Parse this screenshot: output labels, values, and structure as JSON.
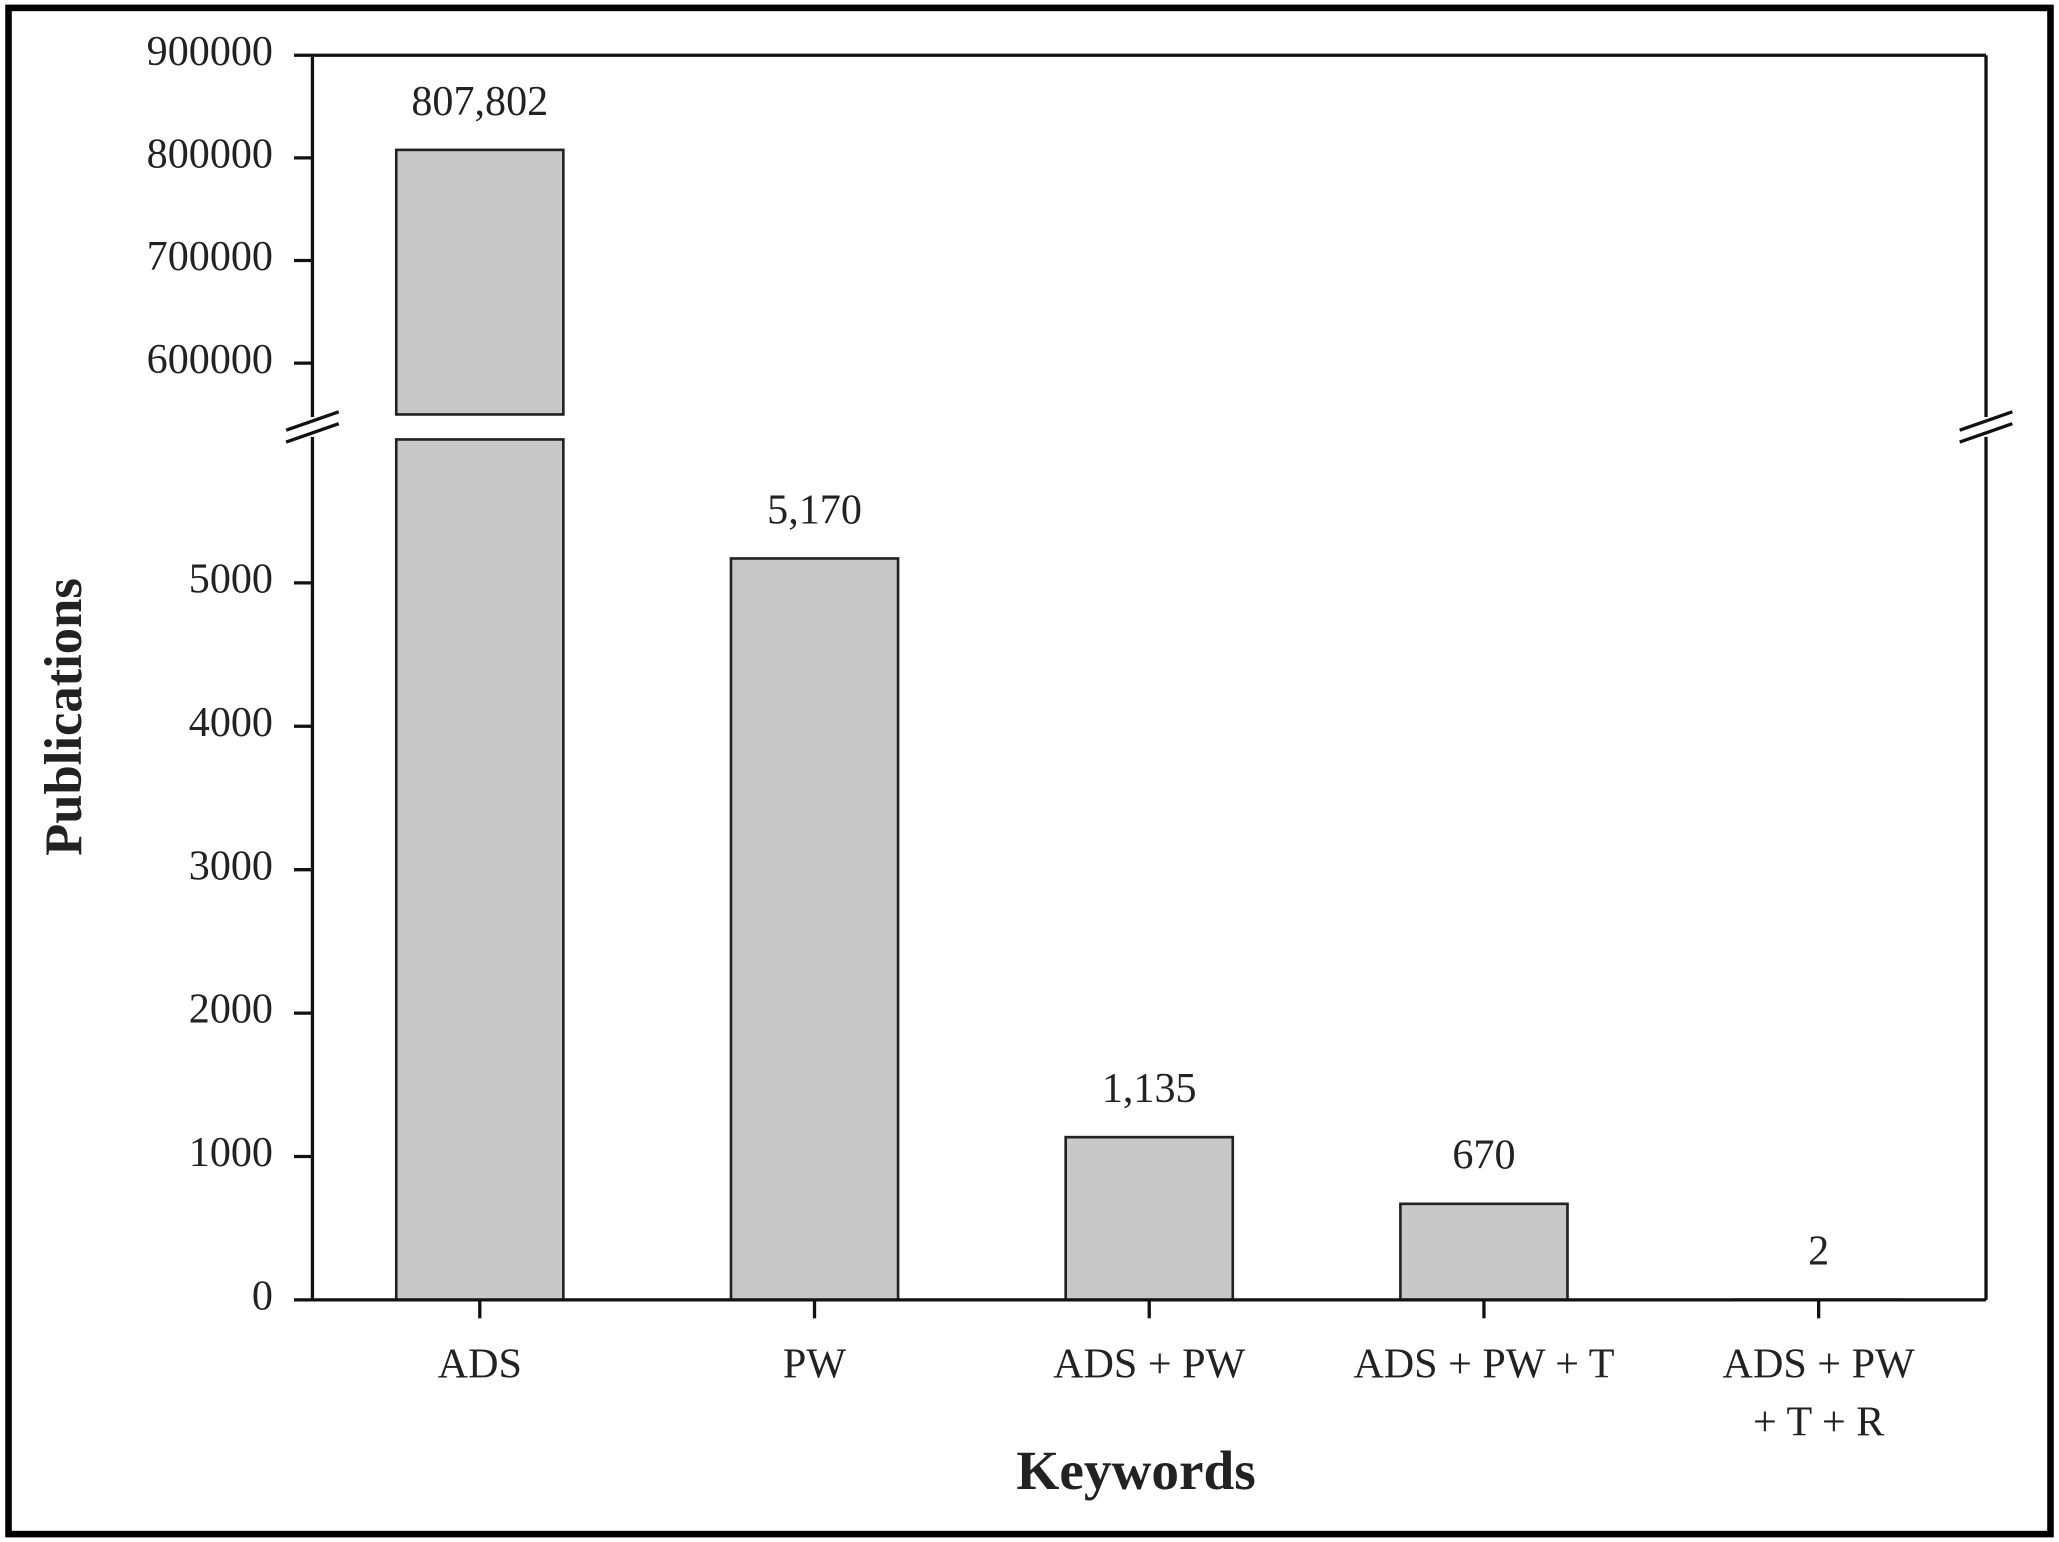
{
  "chart_data": {
    "type": "bar",
    "x_label": "Keywords",
    "y_label": "Publications",
    "categories": [
      "ADS",
      "PW",
      "ADS + PW",
      "ADS + PW + T",
      "ADS + PW\n+ T + R"
    ],
    "values": [
      807802,
      5170,
      1135,
      670,
      2
    ],
    "value_labels": [
      "807,802",
      "5,170",
      "1,135",
      "670",
      "2"
    ],
    "color": "#c8c8c8",
    "ylim": [
      0,
      6000
    ],
    "yticks": [
      0,
      1000,
      2000,
      3000,
      4000,
      5000
    ],
    "ylim_upper": [
      550000,
      900000
    ],
    "yticks_upper": [
      600000,
      700000,
      800000,
      900000
    ]
  }
}
